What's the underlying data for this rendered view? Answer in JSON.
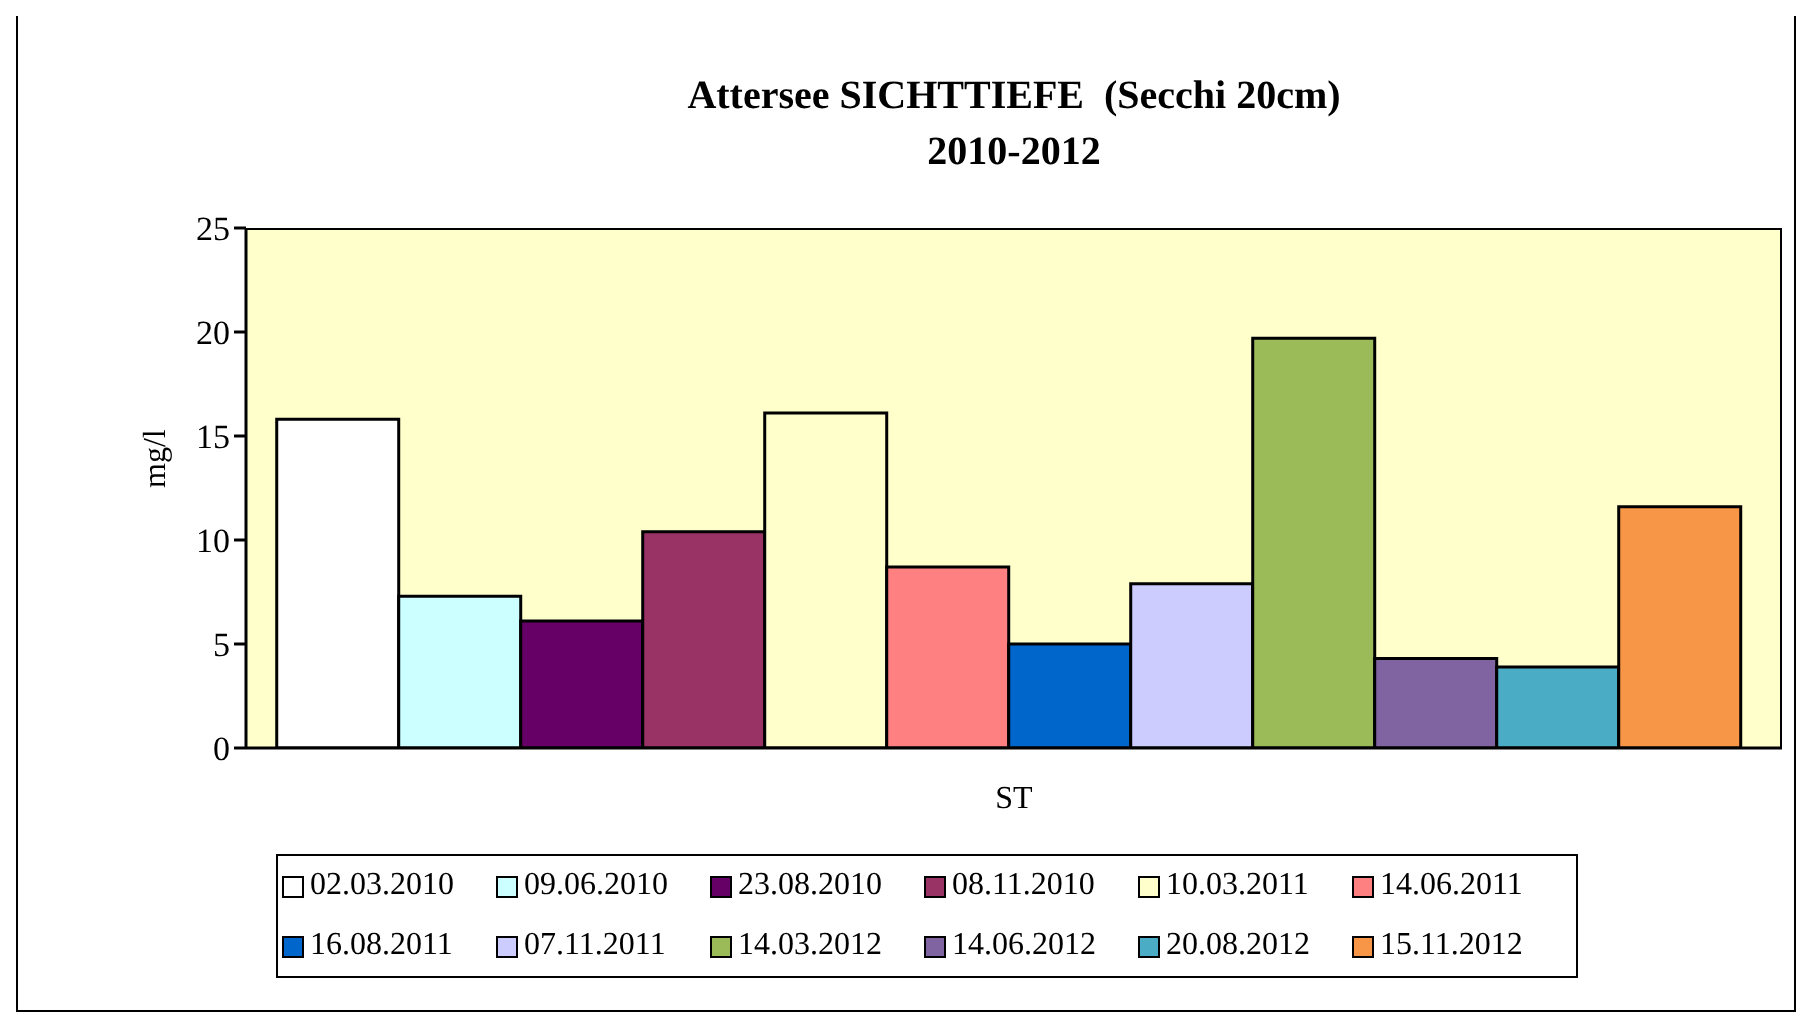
{
  "chart_data": {
    "type": "bar",
    "title": "Attersee SICHTTIEFE  (Secchi 20cm)",
    "subtitle": "2010-2012",
    "xlabel": "ST",
    "ylabel": "mg/l",
    "categories": [
      null
    ],
    "series": [
      {
        "name": "02.03.2010",
        "color": "#ffffff",
        "values": [
          15.8
        ]
      },
      {
        "name": "09.06.2010",
        "color": "#ccffff",
        "values": [
          7.3
        ]
      },
      {
        "name": "23.08.2010",
        "color": "#660066",
        "values": [
          6.1
        ]
      },
      {
        "name": "08.11.2010",
        "color": "#993366",
        "values": [
          10.4
        ]
      },
      {
        "name": "10.03.2011",
        "color": "#ffffcc",
        "values": [
          16.1
        ]
      },
      {
        "name": "14.06.2011",
        "color": "#ff8080",
        "values": [
          8.7
        ]
      },
      {
        "name": "16.08.2011",
        "color": "#0066cc",
        "values": [
          5.0
        ]
      },
      {
        "name": "07.11.2011",
        "color": "#ccccff",
        "values": [
          7.9
        ]
      },
      {
        "name": "14.03.2012",
        "color": "#9bbb59",
        "values": [
          19.7
        ]
      },
      {
        "name": "14.06.2012",
        "color": "#8064a2",
        "values": [
          4.3
        ]
      },
      {
        "name": "20.08.2012",
        "color": "#4bacc6",
        "values": [
          3.9
        ]
      },
      {
        "name": "15.11.2012",
        "color": "#f79646",
        "values": [
          11.6
        ]
      }
    ],
    "ylim": [
      0,
      25
    ],
    "yticks": [
      0,
      5,
      10,
      15,
      20,
      25
    ],
    "grid": false,
    "legend": "bottom"
  }
}
